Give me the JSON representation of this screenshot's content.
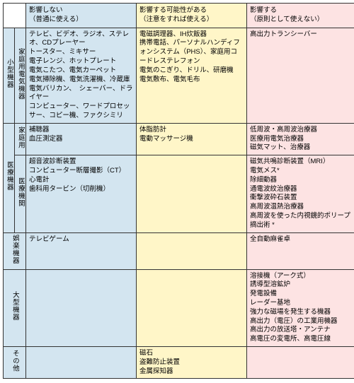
{
  "headers": {
    "none": "影響しない\n（普通に使える）",
    "maybe": "影響する可能性がある\n（注意をすれば使える）",
    "yes": "影響する\n（原則として使えない）"
  },
  "colors": {
    "none": "#d3e5f0",
    "maybe": "#fff6c8",
    "yes": "#fde3e3",
    "border": "#333333"
  },
  "labels": {
    "small_appliance_outer": "小型機器",
    "small_appliance_inner": "家庭用電気機器",
    "medical_outer": "医療機器",
    "medical_home": "家庭用",
    "medical_inst": "医療機関",
    "entertainment": "娯楽機器",
    "large": "大型機器",
    "other": "その他"
  },
  "rows": {
    "appliance": {
      "none": "テレビ、ビデオ、ラジオ、ステレオ、CDプレーヤー\nトースター、ミキサー\n電子レンジ、ホットプレート\n電気こたつ、電気カーペット\n電気掃除機、電気洗濯機、冷蔵庫\n電気バリカン、　シェーバー、ドライヤー\nコンピューター、ワードプロセッサー、コピー機、ファクシミリ",
      "maybe": "電磁調理器、IH炊飯器\n携帯電話、パーソナルハンディフォンシステム（PHS）、家庭用コードレステレフォン\n電気のこぎり、ドリル、研磨機\n電気敷布、電気毛布",
      "yes": "高出力トランシーバー"
    },
    "med_home": {
      "none": "補聴器\n血圧測定器",
      "maybe": "体脂肪計\n電動マッサージ機",
      "yes": "低周波・高周波治療器\n医療用電気治療器\n磁気マット、治療器"
    },
    "med_inst": {
      "none": "超音波診断装置\nコンピューター断層撮影（CT）\n心電計\n歯科用タービン（切削機）",
      "maybe": "",
      "yes": "磁気共鳴診断装置（MRI）\n電気メス*\n除細動器\n通電波紋治療器\n衝撃波砕石装置\n高周波温熱治療器\n高周波を使った内視鏡的ポリープ摘出術 *"
    },
    "ent": {
      "none": "テレビゲーム",
      "maybe": "",
      "yes": "全自動麻雀卓"
    },
    "large": {
      "none": "",
      "maybe": "",
      "yes": "溶接機（アーク式）\n誘導型溶鉱炉\n発電設備\nレーダー基地\n強力な磁場を発生する機器\n高出力（電圧）の工業用機器\n高出力の放送塔・アンテナ\n高電圧の変電所、高電圧線"
    },
    "other": {
      "none": "",
      "maybe": "磁石\n盗難防止装置\n金属探知器",
      "yes": ""
    }
  }
}
